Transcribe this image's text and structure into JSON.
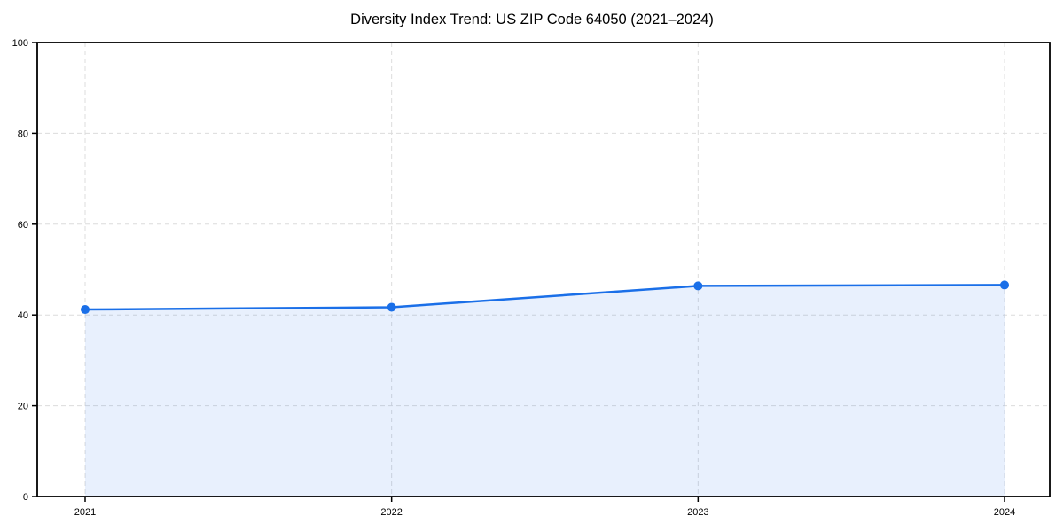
{
  "title": "Diversity Index Trend: US ZIP Code 64050 (2021–2024)",
  "chart_data": {
    "type": "area",
    "title": "Diversity Index Trend: US ZIP Code 64050 (2021–2024)",
    "categories": [
      "2021",
      "2022",
      "2023",
      "2024"
    ],
    "series": [
      {
        "name": "Diversity Index",
        "values": [
          41.2,
          41.7,
          46.4,
          46.6
        ]
      }
    ],
    "xlabel": "",
    "ylabel": "",
    "ylim": [
      0,
      100
    ],
    "y_ticks": [
      0,
      20,
      40,
      60,
      80,
      100
    ],
    "grid": "dashed both axes",
    "legend": "none",
    "line_color": "#1a6fe8",
    "fill_color": "rgba(26, 111, 232, 0.10)",
    "marker": "circle",
    "grid_color": "#dcdcdc",
    "spine_color": "#000000",
    "background_color": "#ffffff"
  }
}
